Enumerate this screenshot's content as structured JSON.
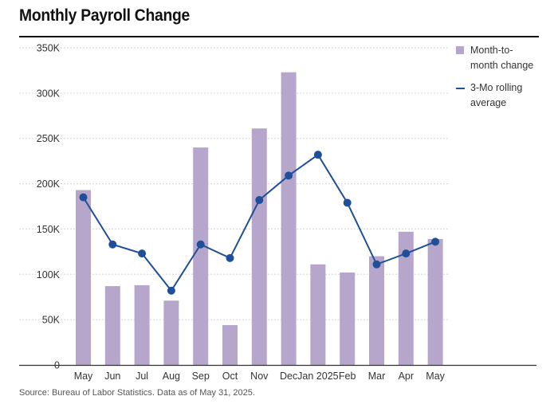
{
  "title": "Monthly Payroll Change",
  "source": "Source: Bureau of Labor Statistics. Data as of May 31, 2025.",
  "colors": {
    "bar": "#b6a6cc",
    "line": "#1f4f99",
    "grid": "#d6d6d6",
    "axis": "#333333"
  },
  "legend": {
    "bar_label": "Month-to-\nmonth change",
    "line_label": "3-Mo rolling\naverage"
  },
  "chart_data": {
    "type": "bar",
    "title": "Monthly Payroll Change",
    "categories": [
      "May",
      "Jun",
      "Jul",
      "Aug",
      "Sep",
      "Oct",
      "Nov",
      "Dec",
      "Jan 2025",
      "Feb",
      "Mar",
      "Apr",
      "May"
    ],
    "series": [
      {
        "name": "Month-to-month change",
        "type": "bar",
        "values": [
          193000,
          87000,
          88000,
          71000,
          240000,
          44000,
          261000,
          323000,
          111000,
          102000,
          120000,
          147000,
          139000
        ]
      },
      {
        "name": "3-Mo rolling average",
        "type": "line",
        "values": [
          185000,
          133000,
          123000,
          82000,
          133000,
          118000,
          182000,
          209000,
          232000,
          179000,
          111000,
          123000,
          136000
        ]
      }
    ],
    "y_ticks": [
      0,
      50000,
      100000,
      150000,
      200000,
      250000,
      300000,
      350000
    ],
    "y_tick_labels": [
      "0",
      "50K",
      "100K",
      "150K",
      "200K",
      "250K",
      "300K",
      "350K"
    ],
    "ylim": [
      0,
      350000
    ],
    "grid": true,
    "legend_position": "right"
  }
}
